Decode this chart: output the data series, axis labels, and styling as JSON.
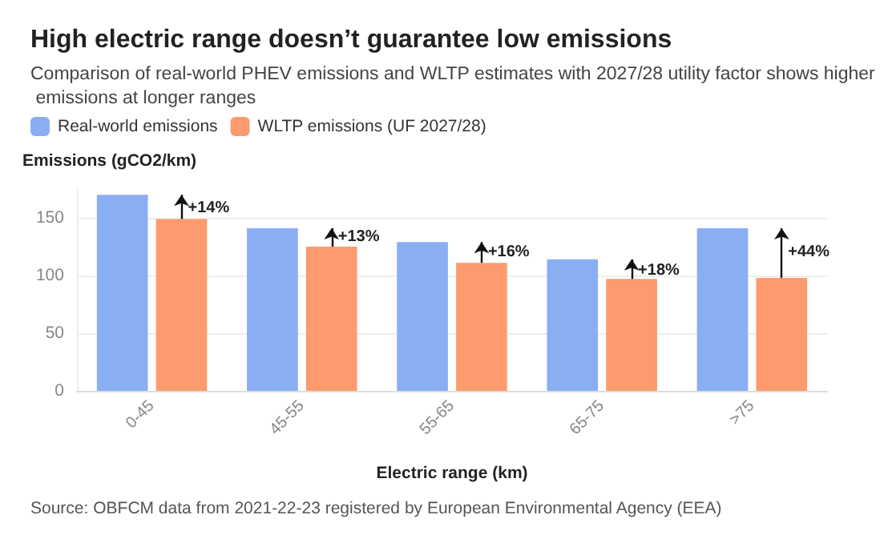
{
  "chart_data": {
    "type": "bar",
    "title": "High electric range doesn’t guarantee low emissions",
    "subtitle": "Comparison of real-world PHEV emissions and WLTP estimates with 2027/28 utility factor shows higher emissions at longer ranges",
    "xlabel": "Electric range (km)",
    "ylabel": "Emissions (gCO2/km)",
    "categories": [
      "0-45",
      "45-55",
      "55-65",
      "65-75",
      ">75"
    ],
    "series": [
      {
        "name": "Real-world emissions",
        "color": "#8aaef2",
        "values": [
          170,
          141,
          129,
          114,
          141
        ]
      },
      {
        "name": "WLTP emissions (UF 2027/28)",
        "color": "#fd9a6e",
        "values": [
          149,
          125,
          111,
          97,
          98
        ]
      }
    ],
    "ylim": [
      0,
      175
    ],
    "yticks": [
      0,
      50,
      100,
      150
    ],
    "grid": "y",
    "legend": "top left",
    "annotations": [
      {
        "text": "+14%",
        "x": "0-45",
        "y": 158
      },
      {
        "text": "+13%",
        "x": "45-55",
        "y": 133
      },
      {
        "text": "+16%",
        "x": "55-65",
        "y": 120
      },
      {
        "text": "+18%",
        "x": "65-75",
        "y": 104
      },
      {
        "text": "+44%",
        "x": ">75",
        "y": 120
      },
      "Source: OBFCM data from 2021-22-23 registered by European Environmental Agency (EEA)"
    ]
  }
}
